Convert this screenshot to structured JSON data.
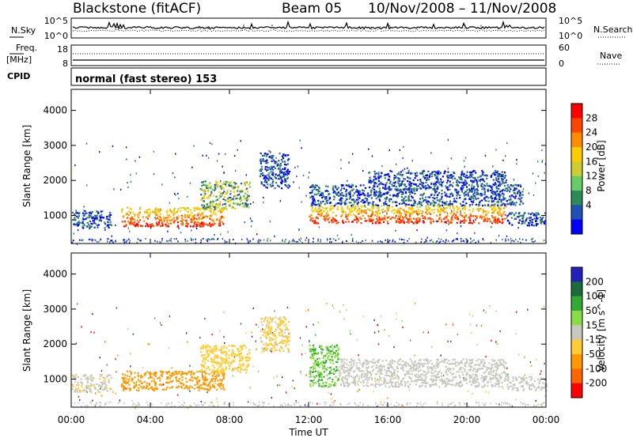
{
  "header": {
    "station": "Blackstone (fitACF)",
    "beam": "Beam 05",
    "date_range": "10/Nov/2008 – 11/Nov/2008",
    "mode": "normal (fast stereo) 153"
  },
  "noise_panel": {
    "left_label": "N.Sky",
    "left_ticks": [
      "10^5",
      "10^0"
    ],
    "right_label": "N.Search",
    "right_ticks": [
      "10^5",
      "10^0"
    ]
  },
  "freq_panel": {
    "left_label": "Freq.",
    "left_unit": "[MHz]",
    "left_ticks": [
      "18",
      "8"
    ],
    "right_label": "Nave",
    "right_ticks": [
      "60",
      "0"
    ],
    "cpid_label": "CPID"
  },
  "x_axis": {
    "label": "Time UT",
    "ticks": [
      "00:00",
      "04:00",
      "08:00",
      "12:00",
      "16:00",
      "20:00",
      "00:00"
    ]
  },
  "colors": {
    "power": [
      "#0000ff",
      "#1f50b5",
      "#2e8b57",
      "#66cc66",
      "#cccc33",
      "#ffcc00",
      "#ff8c00",
      "#ff4500",
      "#ff0000"
    ],
    "velocity": [
      "#2222bb",
      "#1c6b3a",
      "#33aa33",
      "#88dd44",
      "#c8c8c0",
      "#ffcc33",
      "#ff9900",
      "#ff6600",
      "#ff0000"
    ]
  },
  "chart_data": [
    {
      "type": "heatmap",
      "panel": "power",
      "ylabel": "Slant Range [km]",
      "yticks": [
        1000,
        2000,
        3000,
        4000
      ],
      "ylim": [
        200,
        4600
      ],
      "xlim_hours": [
        0,
        24
      ],
      "colorbar": {
        "label": "Power [dB]",
        "ticks": [
          "28",
          "24",
          "20",
          "16",
          "12",
          "8",
          "4"
        ]
      },
      "echo_regions": [
        {
          "t_start": 0.0,
          "t_end": 2.0,
          "range_low": 650,
          "range_high": 1150,
          "level": "low"
        },
        {
          "t_start": 2.5,
          "t_end": 7.7,
          "range_low": 700,
          "range_high": 1250,
          "level": "high"
        },
        {
          "t_start": 6.5,
          "t_end": 9.0,
          "range_low": 1200,
          "range_high": 2000,
          "level": "medium"
        },
        {
          "t_start": 9.5,
          "t_end": 11.0,
          "range_low": 1800,
          "range_high": 2800,
          "level": "low"
        },
        {
          "t_start": 12.0,
          "t_end": 22.0,
          "range_low": 800,
          "range_high": 1300,
          "level": "high"
        },
        {
          "t_start": 12.0,
          "t_end": 22.8,
          "range_low": 1300,
          "range_high": 1900,
          "level": "low"
        },
        {
          "t_start": 15.0,
          "t_end": 22.0,
          "range_low": 1900,
          "range_high": 2300,
          "level": "low"
        },
        {
          "t_start": 22.0,
          "t_end": 24.0,
          "range_low": 700,
          "range_high": 1100,
          "level": "low"
        }
      ]
    },
    {
      "type": "heatmap",
      "panel": "velocity",
      "ylabel": "Slant Range [km]",
      "yticks": [
        1000,
        2000,
        3000,
        4000
      ],
      "ylim": [
        200,
        4600
      ],
      "xlim_hours": [
        0,
        24
      ],
      "colorbar": {
        "label": "Velocity [m s^-1]",
        "ticks": [
          "200",
          "100",
          "50",
          "15",
          "-15",
          "-50",
          "-100",
          "-200"
        ]
      },
      "echo_regions": [
        {
          "t_start": 0.0,
          "t_end": 2.0,
          "range_low": 650,
          "range_high": 1150,
          "velocity": -10
        },
        {
          "t_start": 2.5,
          "t_end": 7.7,
          "range_low": 700,
          "range_high": 1250,
          "velocity": -60
        },
        {
          "t_start": 6.5,
          "t_end": 9.0,
          "range_low": 1200,
          "range_high": 2000,
          "velocity": -30
        },
        {
          "t_start": 9.5,
          "t_end": 11.0,
          "range_low": 1800,
          "range_high": 2800,
          "velocity": -20
        },
        {
          "t_start": 12.0,
          "t_end": 13.5,
          "range_low": 800,
          "range_high": 2000,
          "velocity": 30
        },
        {
          "t_start": 13.5,
          "t_end": 22.0,
          "range_low": 800,
          "range_high": 1600,
          "velocity": 0
        },
        {
          "t_start": 22.0,
          "t_end": 24.0,
          "range_low": 700,
          "range_high": 1100,
          "velocity": 0
        }
      ]
    }
  ]
}
